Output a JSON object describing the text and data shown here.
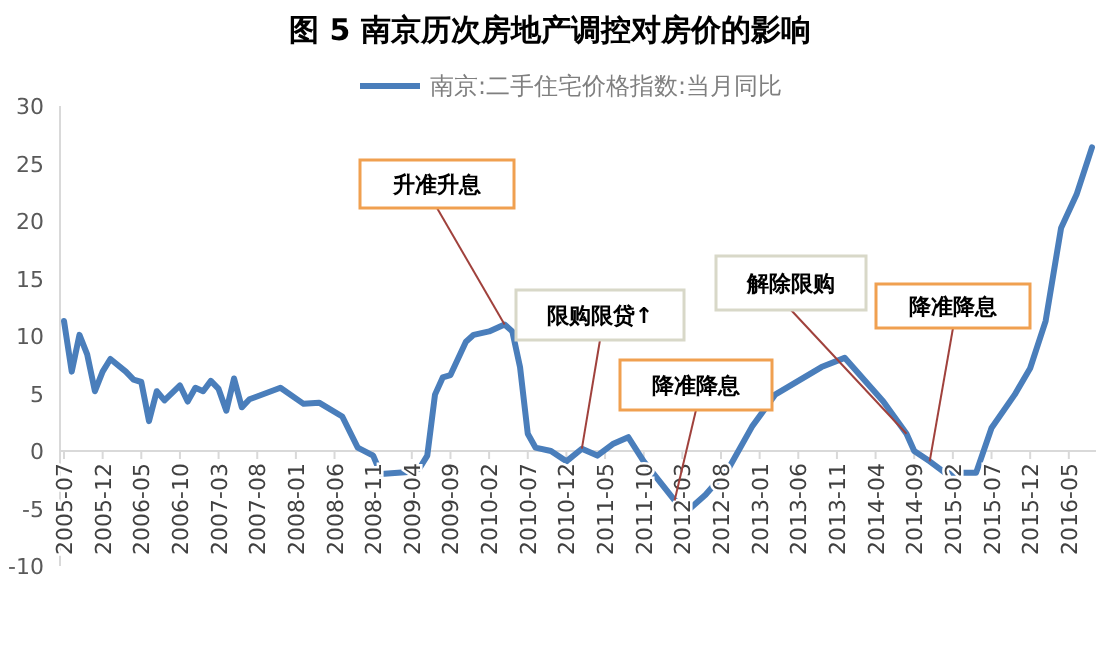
{
  "chart_data": {
    "type": "line",
    "title": "图 5  南京历次房地产调控对房价的影响",
    "x": [
      "2005-07",
      "2005-08",
      "2005-09",
      "2005-10",
      "2005-11",
      "2005-12",
      "2006-01",
      "2006-03",
      "2006-04",
      "2006-05",
      "2006-06",
      "2006-07",
      "2006-08",
      "2006-10",
      "2006-11",
      "2006-12",
      "2007-01",
      "2007-02",
      "2007-03",
      "2007-04",
      "2007-05",
      "2007-06",
      "2007-07",
      "2007-11",
      "2008-02",
      "2008-04",
      "2008-07",
      "2008-09",
      "2008-11",
      "2008-12",
      "2009-04",
      "2009-05",
      "2009-06",
      "2009-07",
      "2009-08",
      "2009-09",
      "2009-11",
      "2009-12",
      "2010-02",
      "2010-04",
      "2010-05",
      "2010-06",
      "2010-07",
      "2010-08",
      "2010-10",
      "2010-12",
      "2011-02",
      "2011-04",
      "2011-06",
      "2011-08",
      "2011-10",
      "2012-02",
      "2012-04",
      "2012-06",
      "2012-09",
      "2012-12",
      "2013-03",
      "2013-06",
      "2013-09",
      "2013-12",
      "2014-05",
      "2014-08",
      "2014-09",
      "2014-11",
      "2015-01",
      "2015-05",
      "2015-07",
      "2015-10",
      "2015-12",
      "2016-02",
      "2016-04",
      "2016-06",
      "2016-08"
    ],
    "series": [
      {
        "name": "南京:二手住宅价格指数:当月同比",
        "color": "#4a7ebb",
        "values": [
          11.3,
          6.9,
          10.1,
          8.4,
          5.2,
          6.9,
          8.0,
          6.9,
          6.2,
          6.0,
          2.6,
          5.2,
          4.4,
          5.7,
          4.3,
          5.5,
          5.2,
          6.1,
          5.4,
          3.5,
          6.3,
          3.8,
          4.5,
          5.5,
          4.1,
          4.2,
          3.0,
          0.3,
          -0.4,
          -2.0,
          -1.8,
          -1.5,
          -0.4,
          4.9,
          6.4,
          6.6,
          9.5,
          10.1,
          10.4,
          11.0,
          10.4,
          7.3,
          1.5,
          0.3,
          0,
          -0.9,
          0.2,
          -0.4,
          0.6,
          1.2,
          -0.9,
          -4.3,
          -5.0,
          -3.8,
          -1.5,
          2.1,
          4.9,
          6.1,
          7.3,
          8.1,
          4.3,
          1.5,
          0,
          -0.9,
          -1.9,
          -1.9,
          2.0,
          4.9,
          7.2,
          11.3,
          19.4,
          22.3,
          26.4
        ]
      }
    ],
    "xlim": [
      "2005-07",
      "2016-08"
    ],
    "xticks": [
      "2005-07",
      "2005-12",
      "2006-05",
      "2006-10",
      "2007-03",
      "2007-08",
      "2008-01",
      "2008-06",
      "2008-11",
      "2009-04",
      "2009-09",
      "2010-02",
      "2010-07",
      "2010-12",
      "2011-05",
      "2011-10",
      "2012-03",
      "2012-08",
      "2013-01",
      "2013-06",
      "2013-11",
      "2014-04",
      "2014-09",
      "2015-02",
      "2015-07",
      "2015-12",
      "2016-05"
    ],
    "ylim": [
      -10,
      30
    ],
    "yticks": [
      -10,
      -5,
      0,
      5,
      10,
      15,
      20,
      25,
      30
    ],
    "grid": false,
    "legend": "top",
    "marker": "none",
    "line_style": "solid",
    "annotations": [
      {
        "text": "升准升息",
        "x": "2010-04",
        "y": 11.0
      },
      {
        "text": "限购限贷↑",
        "x": "2011-02",
        "y": 0.2
      },
      {
        "text": "降准降息",
        "x": "2012-02",
        "y": -4.3
      },
      {
        "text": "解除限购",
        "x": "2014-08",
        "y": 1.5
      },
      {
        "text": "降准降息",
        "x": "2014-11",
        "y": -0.9
      }
    ]
  }
}
